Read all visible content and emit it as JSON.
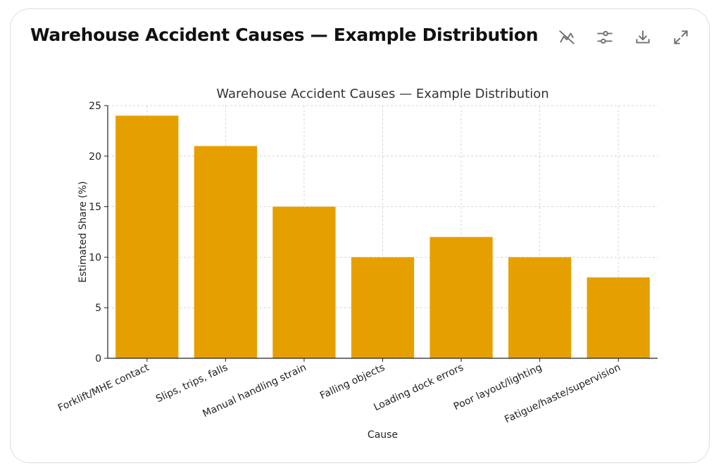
{
  "header": {
    "title": "Warehouse Accident Causes — Example Distribution"
  },
  "toolbar": {
    "buttons": [
      {
        "name": "hide-chart-button",
        "icon": "chart-hidden-icon"
      },
      {
        "name": "chart-settings-button",
        "icon": "sliders-icon"
      },
      {
        "name": "download-button",
        "icon": "download-icon"
      },
      {
        "name": "expand-button",
        "icon": "expand-icon"
      }
    ]
  },
  "chart_data": {
    "type": "bar",
    "title": "Warehouse Accident Causes — Example Distribution",
    "xlabel": "Cause",
    "ylabel": "Estimated Share (%)",
    "categories": [
      "Forklift/MHE contact",
      "Slips, trips, falls",
      "Manual handling strain",
      "Falling objects",
      "Loading dock errors",
      "Poor layout/lighting",
      "Fatigue/haste/supervision"
    ],
    "values": [
      24,
      21,
      15,
      10,
      12,
      10,
      8
    ],
    "ylim": [
      0,
      25
    ],
    "yticks": [
      0,
      5,
      10,
      15,
      20,
      25
    ],
    "grid": true,
    "bar_color": "#E5A000",
    "grid_color": "#cccccc"
  }
}
